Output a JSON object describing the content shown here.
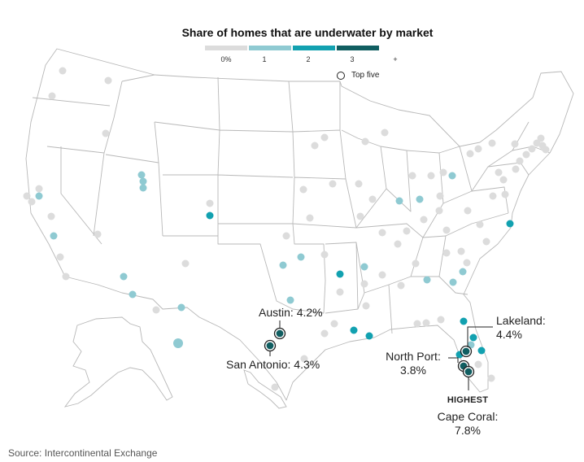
{
  "title": "Share of homes that are underwater by market",
  "legend": {
    "labels": [
      "0%",
      "1",
      "2",
      "3",
      "+"
    ],
    "colors": [
      "#dcdcdc",
      "#8fcad2",
      "#12a1b0",
      "#105e61"
    ],
    "top_five_label": "Top five"
  },
  "callouts": {
    "austin": "Austin: 4.2%",
    "san_antonio": "San Antonio: 4.3%",
    "lakeland_name": "Lakeland:",
    "lakeland_value": "4.4%",
    "north_port_name": "North Port:",
    "north_port_value": "3.8%",
    "highest_label": "HIGHEST",
    "cape_coral_name": "Cape Coral:",
    "cape_coral_value": "7.8%"
  },
  "source": "Source: Intercontinental Exchange"
}
